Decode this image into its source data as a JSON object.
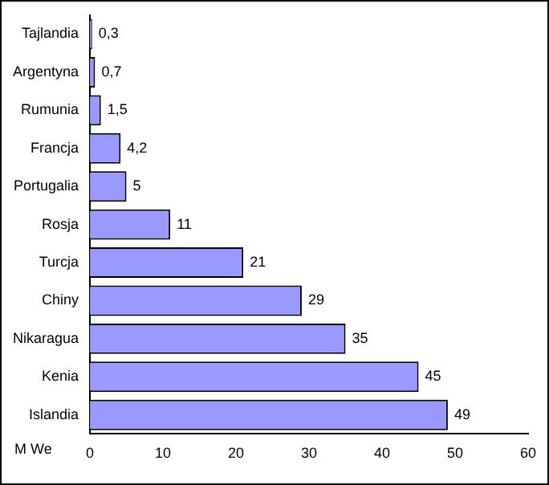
{
  "chart_data": {
    "type": "bar",
    "orientation": "horizontal",
    "xlabel": "M We",
    "categories": [
      "Tajlandia",
      "Argentyna",
      "Rumunia",
      "Francja",
      "Portugalia",
      "Rosja",
      "Turcja",
      "Chiny",
      "Nikaragua",
      "Kenia",
      "Islandia"
    ],
    "values": [
      0.3,
      0.7,
      1.5,
      4.2,
      5,
      11,
      21,
      29,
      35,
      45,
      49
    ],
    "value_labels": [
      "0,3",
      "0,7",
      "1,5",
      "4,2",
      "5",
      "11",
      "21",
      "29",
      "35",
      "45",
      "49"
    ],
    "color": "#9999ff",
    "xlim": [
      0,
      60
    ],
    "xticks": [
      0,
      10,
      20,
      30,
      40,
      50,
      60
    ],
    "grid": false,
    "legend": false
  }
}
